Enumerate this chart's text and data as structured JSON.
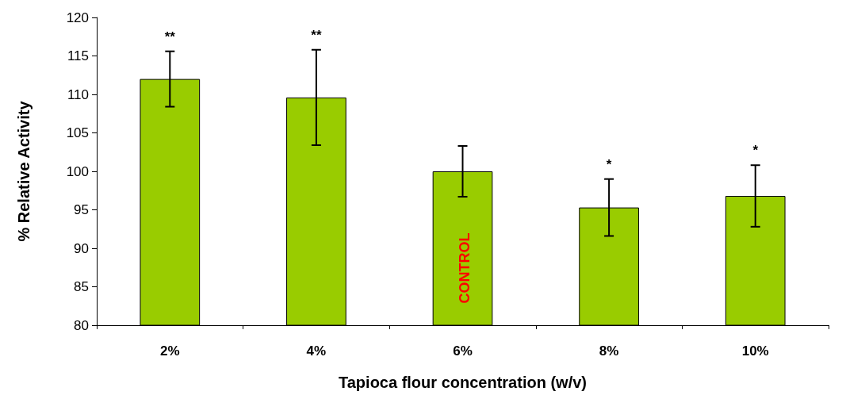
{
  "chart_data": {
    "type": "bar",
    "xlabel": "Tapioca flour concentration (w/v)",
    "ylabel": "% Relative Activity",
    "categories": [
      "2%",
      "4%",
      "6%",
      "8%",
      "10%"
    ],
    "values": [
      112.0,
      109.6,
      100.0,
      95.3,
      96.8
    ],
    "errors": [
      3.6,
      6.2,
      3.3,
      3.7,
      4.0
    ],
    "color": "#99cc00",
    "ylim": [
      80,
      120
    ],
    "yticks": [
      80,
      85,
      90,
      95,
      100,
      105,
      110,
      115,
      120
    ],
    "grid": false,
    "annotations": [
      {
        "text": "**",
        "x": "2%",
        "y": 115.6
      },
      {
        "text": "**",
        "x": "4%",
        "y": 115.8
      },
      "CONTROL",
      {
        "text": "*",
        "x": "8%",
        "y": 99.0
      },
      {
        "text": "*",
        "x": "10%",
        "y": 100.8
      }
    ]
  }
}
